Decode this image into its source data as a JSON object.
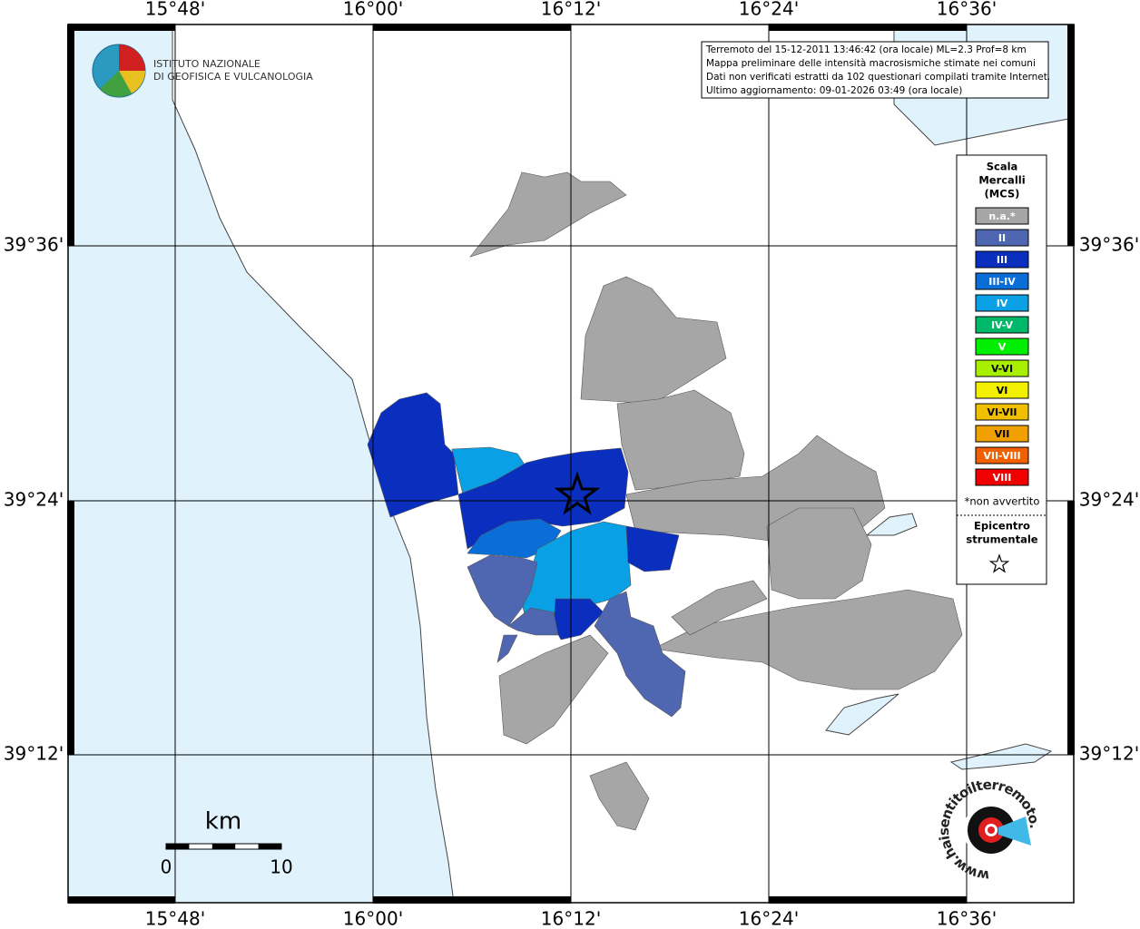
{
  "map": {
    "lon_labels": [
      "15°48'",
      "16°00'",
      "16°12'",
      "16°24'",
      "16°36'"
    ],
    "lat_labels": [
      "39°36'",
      "39°24'",
      "39°12'"
    ],
    "institute": [
      "ISTITUTO NAZIONALE",
      "DI GEOFISICA E VULCANOLOGIA"
    ],
    "info": [
      "Terremoto del 15-12-2011 13:46:42 (ora locale) ML=2.3 Prof=8 km",
      "Mappa preliminare delle intensità macrosismiche stimate nei comuni",
      "Dati non verificati estratti da 102 questionari compilati tramite Internet.",
      "Ultimo aggiornamento: 09-01-2026 03:49 (ora locale)"
    ],
    "legend": {
      "title": [
        "Scala",
        "Mercalli",
        "(MCS)"
      ],
      "items": [
        {
          "label": "n.a.*",
          "color": "#a6a6a6"
        },
        {
          "label": "II",
          "color": "#4f66b0"
        },
        {
          "label": "III",
          "color": "#0a2ebd"
        },
        {
          "label": "III-IV",
          "color": "#0a6ed8"
        },
        {
          "label": "IV",
          "color": "#0aa0e6"
        },
        {
          "label": "IV-V",
          "color": "#00b86a"
        },
        {
          "label": "V",
          "color": "#00ee00"
        },
        {
          "label": "V-VI",
          "color": "#a8f000"
        },
        {
          "label": "VI",
          "color": "#f2f000"
        },
        {
          "label": "VI-VII",
          "color": "#f0c000"
        },
        {
          "label": "VII",
          "color": "#f0a000"
        },
        {
          "label": "VII-VIII",
          "color": "#f06000"
        },
        {
          "label": "VIII",
          "color": "#f00000"
        }
      ],
      "note": "*non avvertito",
      "epicenter": [
        "Epicentro",
        "strumentale"
      ]
    },
    "scale_bar": {
      "unit": "km",
      "labels": [
        "0",
        "10"
      ]
    },
    "brand": "www.haisentitoilterremoto.it"
  }
}
